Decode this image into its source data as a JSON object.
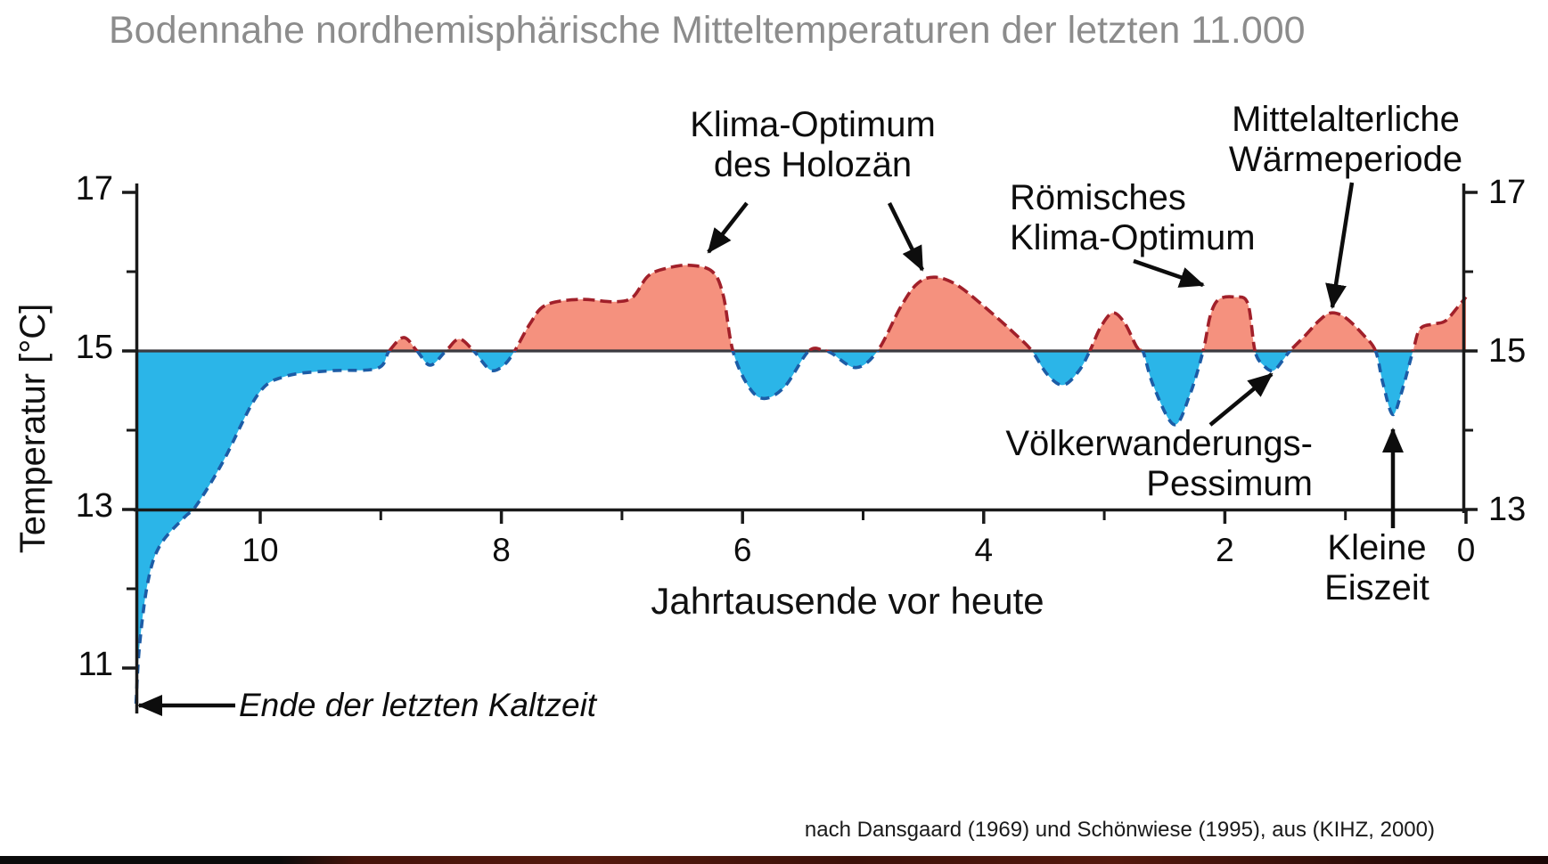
{
  "chart_data": {
    "type": "area",
    "title": "Bodennahe nordhemisphärische Mitteltemperaturen der letzten 11.000",
    "xlabel": "Jahrtausende vor heute",
    "ylabel": "Temperatur [°C]",
    "baseline_temperature_c": 15,
    "x_axis": {
      "ticks": [
        10,
        8,
        6,
        4,
        2,
        0
      ],
      "minor_ticks": [
        9,
        7,
        5,
        3,
        1
      ],
      "range_kyr_before_present": [
        11.03,
        0
      ],
      "direction": "time before present, decreasing to the right"
    },
    "y_axis": {
      "ticks_left": [
        17,
        15,
        13,
        11
      ],
      "minor_ticks_left": [
        16,
        14,
        12
      ],
      "ticks_right": [
        17,
        15,
        13
      ],
      "minor_ticks_right": [
        16,
        14
      ],
      "unit": "°C",
      "range": [
        10.3,
        17.3
      ]
    },
    "series": [
      {
        "name": "Bodennahe nordhemisphärische Mitteltemperatur",
        "x_unit": "Jahrtausende vor heute",
        "y_unit": "°C",
        "points": [
          [
            11.03,
            10.55
          ],
          [
            11.0,
            11.3
          ],
          [
            10.93,
            12.1
          ],
          [
            10.83,
            12.55
          ],
          [
            10.63,
            12.9
          ],
          [
            10.53,
            13.05
          ],
          [
            10.31,
            13.6
          ],
          [
            10.02,
            14.45
          ],
          [
            9.79,
            14.68
          ],
          [
            9.42,
            14.75
          ],
          [
            9.03,
            14.78
          ],
          [
            8.93,
            15.0
          ],
          [
            8.81,
            15.17
          ],
          [
            8.7,
            15.0
          ],
          [
            8.59,
            14.82
          ],
          [
            8.46,
            15.0
          ],
          [
            8.35,
            15.15
          ],
          [
            8.23,
            15.0
          ],
          [
            8.09,
            14.76
          ],
          [
            7.98,
            14.82
          ],
          [
            7.89,
            15.0
          ],
          [
            7.76,
            15.35
          ],
          [
            7.63,
            15.58
          ],
          [
            7.35,
            15.65
          ],
          [
            7.06,
            15.62
          ],
          [
            6.91,
            15.68
          ],
          [
            6.78,
            15.95
          ],
          [
            6.61,
            16.05
          ],
          [
            6.43,
            16.08
          ],
          [
            6.25,
            16.0
          ],
          [
            6.16,
            15.7
          ],
          [
            6.08,
            15.0
          ],
          [
            5.95,
            14.55
          ],
          [
            5.82,
            14.4
          ],
          [
            5.65,
            14.55
          ],
          [
            5.45,
            15.0
          ],
          [
            5.32,
            15.0
          ],
          [
            5.26,
            14.97
          ],
          [
            5.06,
            14.79
          ],
          [
            4.88,
            15.0
          ],
          [
            4.69,
            15.55
          ],
          [
            4.55,
            15.85
          ],
          [
            4.4,
            15.93
          ],
          [
            4.21,
            15.82
          ],
          [
            3.95,
            15.5
          ],
          [
            3.73,
            15.2
          ],
          [
            3.6,
            15.0
          ],
          [
            3.47,
            14.7
          ],
          [
            3.34,
            14.57
          ],
          [
            3.21,
            14.75
          ],
          [
            3.12,
            15.0
          ],
          [
            3.03,
            15.3
          ],
          [
            2.93,
            15.48
          ],
          [
            2.83,
            15.35
          ],
          [
            2.73,
            15.05
          ],
          [
            2.68,
            15.0
          ],
          [
            2.59,
            14.55
          ],
          [
            2.42,
            14.07
          ],
          [
            2.29,
            14.45
          ],
          [
            2.18,
            15.0
          ],
          [
            2.12,
            15.45
          ],
          [
            2.05,
            15.65
          ],
          [
            1.92,
            15.68
          ],
          [
            1.81,
            15.6
          ],
          [
            1.75,
            15.0
          ],
          [
            1.68,
            14.82
          ],
          [
            1.6,
            14.75
          ],
          [
            1.52,
            14.88
          ],
          [
            1.46,
            15.0
          ],
          [
            1.33,
            15.2
          ],
          [
            1.22,
            15.38
          ],
          [
            1.12,
            15.48
          ],
          [
            1.0,
            15.42
          ],
          [
            0.85,
            15.2
          ],
          [
            0.75,
            15.0
          ],
          [
            0.69,
            14.6
          ],
          [
            0.61,
            14.2
          ],
          [
            0.54,
            14.45
          ],
          [
            0.44,
            15.0
          ],
          [
            0.38,
            15.28
          ],
          [
            0.26,
            15.34
          ],
          [
            0.17,
            15.38
          ],
          [
            0.07,
            15.55
          ],
          [
            0.0,
            15.68
          ]
        ]
      }
    ],
    "colors": {
      "warm_fill": "#F5917E",
      "warm_stroke": "#A1202A",
      "cold_fill": "#2BB5E8",
      "cold_stroke": "#1C5CA6",
      "baseline_line": "#3A3A40",
      "axis": "#1a1a1a",
      "title_gray": "#8c8c8c"
    },
    "annotations": [
      {
        "id": "holozaen",
        "text": "Klima-Optimum\ndes Holozän",
        "points_to": "Maximum um 6–7 Jahrtausende vor heute, ca. 16.1 °C"
      },
      {
        "id": "roemisch",
        "text": "Römisches\nKlima-Optimum",
        "points_to": "Warmphase um 2 Jahrtausende vor heute, ca. 15.7 °C"
      },
      {
        "id": "mittelalter",
        "text": "Mittelalterliche\nWärmeperiode",
        "points_to": "Warmphase um 1 Jahrtausend vor heute, ca. 15.5 °C"
      },
      {
        "id": "voelkerwanderung",
        "text": "Völkerwanderungs-\nPessimum",
        "points_to": "Kältephase um 1.6 Jahrtausende vor heute, ca. 14.75 °C"
      },
      {
        "id": "kleine-eiszeit",
        "text": "Kleine\nEiszeit",
        "points_to": "Kältephase um 0.6 Jahrtausende vor heute, ca. 14.2 °C"
      },
      {
        "id": "ende-kaltzeit",
        "text": "Ende der letzten Kaltzeit",
        "points_to": "Beginn der Kurve bei ca. 10.5 °C, 11 Jahrtausende vor heute"
      }
    ],
    "source": "nach Dansgaard (1969) und Schönwiese (1995), aus (KIHZ, 2000)"
  }
}
